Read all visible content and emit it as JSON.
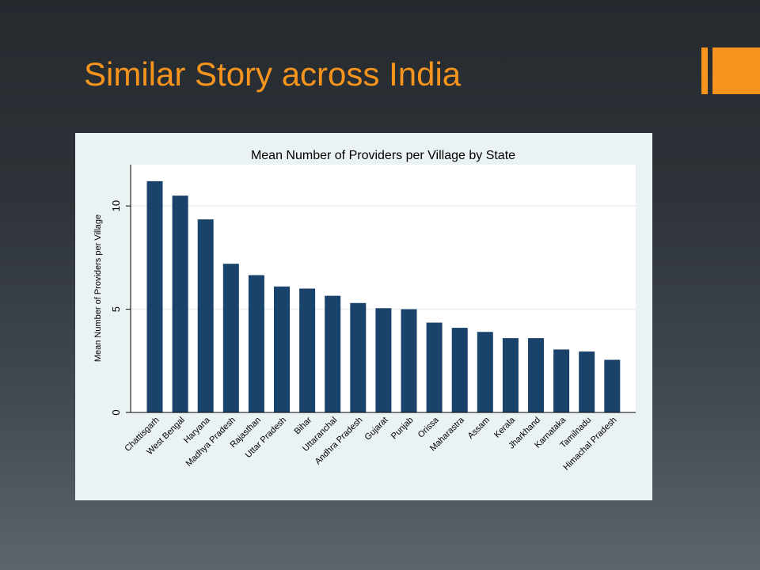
{
  "slide": {
    "title": "Similar Story across India"
  },
  "colors": {
    "title": "#f7941d",
    "accent": "#f7941d",
    "bar": "#1a436b",
    "plot_background": "#ffffff",
    "chart_background": "#eaf2f3"
  },
  "chart_data": {
    "type": "bar",
    "title": "Mean Number of Providers per Village by State",
    "xlabel": "",
    "ylabel": "Mean Number of Providers per Village",
    "categories": [
      "Chattisgarh",
      "West Bengal",
      "Haryana",
      "Madhya Pradesh",
      "Rajasthan",
      "Uttar Pradesh",
      "Bihar",
      "Uttaranchal",
      "Andhra Pradesh",
      "Gujarat",
      "Punjab",
      "Orissa",
      "Maharastra",
      "Assam",
      "Kerala",
      "Jharkhand",
      "Karnataka",
      "Tamilnadu",
      "Himachal Pradesh"
    ],
    "values": [
      11.2,
      10.5,
      9.35,
      7.2,
      6.65,
      6.1,
      6.0,
      5.65,
      5.3,
      5.05,
      5.0,
      4.35,
      4.1,
      3.9,
      3.6,
      3.6,
      3.05,
      2.95,
      2.55
    ],
    "ylim": [
      0,
      12
    ],
    "yticks": [
      0,
      5,
      10
    ],
    "ytick_labels": [
      "0",
      "5",
      "10"
    ],
    "grid": true,
    "legend": "none"
  }
}
